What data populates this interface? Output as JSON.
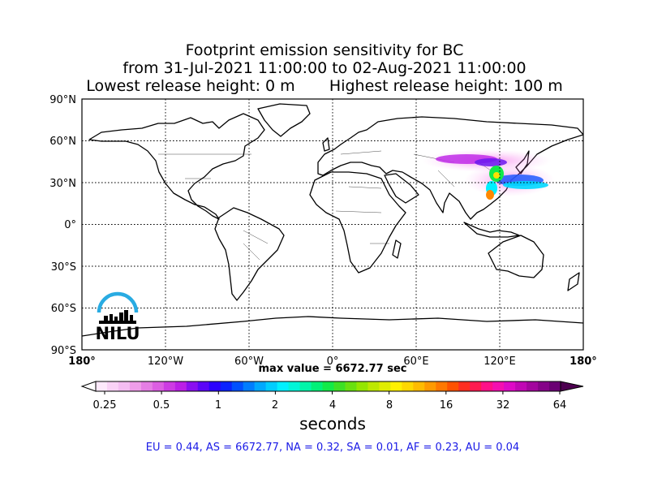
{
  "title": {
    "line1": "Footprint emission sensitivity for BC",
    "line2": "from 31-Jul-2021 11:00:00 to 02-Aug-2021 11:00:00",
    "line3": "Lowest release height: 0 m       Highest release height: 100 m"
  },
  "map": {
    "lat_labels": [
      "90°N",
      "60°N",
      "30°N",
      "0°",
      "30°S",
      "60°S",
      "90°S"
    ],
    "lon_labels": [
      "180°",
      "120°W",
      "60°W",
      "0°",
      "60°E",
      "120°E",
      "180°"
    ],
    "logo_text": "NILU",
    "max_value_label": "max value = 6672.77 sec",
    "grid": "dotted",
    "logo_color": "#29abe2"
  },
  "colorbar": {
    "ticks": [
      "0.25",
      "0.5",
      "1",
      "2",
      "4",
      "8",
      "16",
      "32",
      "64"
    ],
    "units": "seconds",
    "colors": [
      "#fde9fb",
      "#f9d2f6",
      "#f4bdf2",
      "#ef9de9",
      "#e57ee4",
      "#dc5ee2",
      "#cd3be3",
      "#bb1fe6",
      "#8a0ff0",
      "#5b06f7",
      "#2b01fd",
      "#0a23ff",
      "#0050ff",
      "#007dff",
      "#00a8ff",
      "#00cdff",
      "#00f0ff",
      "#00f5d8",
      "#00f5a9",
      "#00f078",
      "#12ea48",
      "#3de025",
      "#69e010",
      "#94e600",
      "#bde800",
      "#e0ec00",
      "#fff000",
      "#ffd800",
      "#ffbb00",
      "#ff9a00",
      "#ff7800",
      "#ff5200",
      "#ff2e20",
      "#ff1a50",
      "#ff1088",
      "#f40fb0",
      "#de0ac6",
      "#c008b4",
      "#a3069e",
      "#850388",
      "#6a0073"
    ]
  },
  "stats_text": "EU = 0.44,  AS = 6672.77,  NA = 0.32,  SA = 0.01,  AF = 0.23,  AU = 0.04"
}
